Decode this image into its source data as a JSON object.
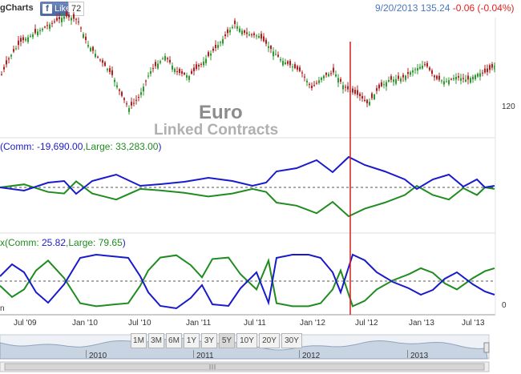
{
  "topbar": {
    "brand": "gCharts",
    "like_label": "Like",
    "like_count": "72",
    "quote_date": "9/20/2013",
    "quote_price": "135.24",
    "quote_change": "-0.06 (-0.04%)"
  },
  "watermark": {
    "title": "Euro",
    "subtitle": "Linked Contracts"
  },
  "price_panel": {
    "right_label": "120"
  },
  "panel2": {
    "legend_prefix": "(Comm: ",
    "comm": "-19,690.00",
    "large_prefix": ",Large: ",
    "large": "33,283.00",
    "suffix": ")"
  },
  "panel3": {
    "legend_prefix": "x(Comm: ",
    "comm": "25.82",
    "large_prefix": ",Large: ",
    "large": "79.65",
    "suffix": ")",
    "right_label": "0",
    "left_label": "n"
  },
  "x_axis": [
    "Jul '09",
    "Jan '10",
    "Jul '10",
    "Jan '11",
    "Jul '11",
    "Jan '12",
    "Jul '12",
    "Jan '13",
    "Jul '13"
  ],
  "range_buttons": [
    "1M",
    "3M",
    "6M",
    "1Y",
    "3Y",
    "5Y",
    "10Y",
    "20Y",
    "30Y"
  ],
  "range_selected": "5Y",
  "navigator_years": [
    "2010",
    "2011",
    "2012",
    "2013"
  ],
  "colors": {
    "comm": "#1a1acd",
    "large": "#1f8c1f",
    "cursor": "#d42020",
    "up": "#2e9a2e",
    "down": "#b02020"
  }
}
